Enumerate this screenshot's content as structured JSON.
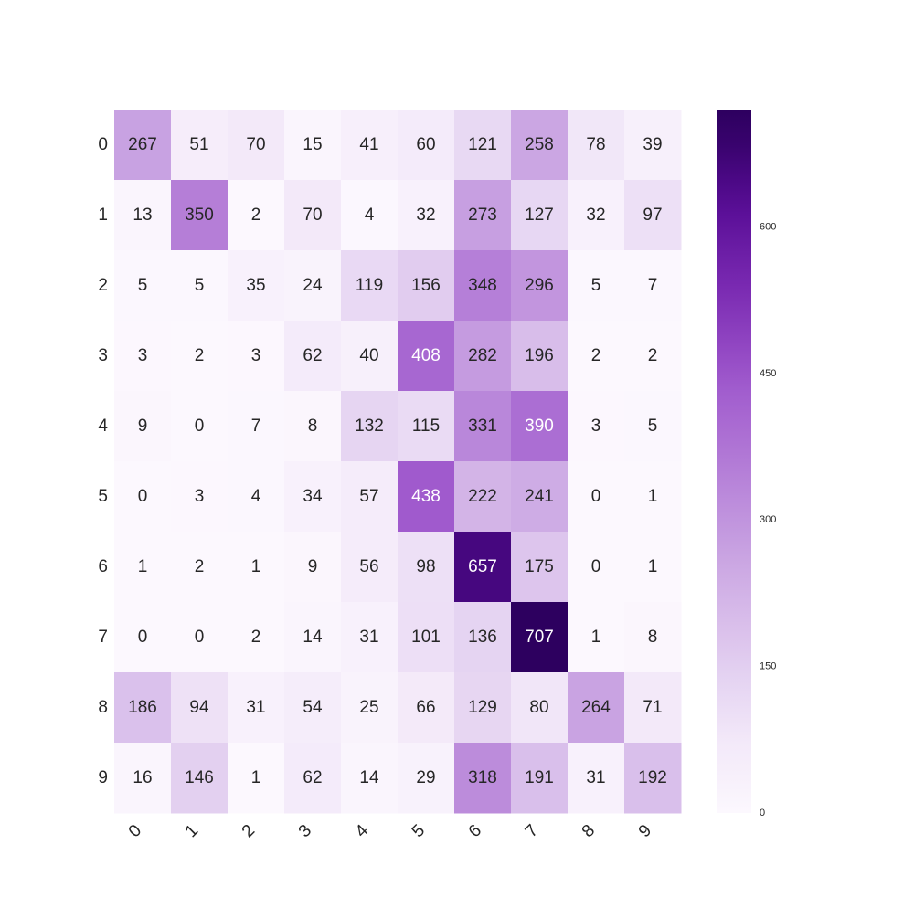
{
  "chart_data": {
    "type": "heatmap",
    "title": "",
    "xlabel": "",
    "ylabel": "",
    "x_categories": [
      "0",
      "1",
      "2",
      "3",
      "4",
      "5",
      "6",
      "7",
      "8",
      "9"
    ],
    "y_categories": [
      "0",
      "1",
      "2",
      "3",
      "4",
      "5",
      "6",
      "7",
      "8",
      "9"
    ],
    "values": [
      [
        267,
        51,
        70,
        15,
        41,
        60,
        121,
        258,
        78,
        39
      ],
      [
        13,
        350,
        2,
        70,
        4,
        32,
        273,
        127,
        32,
        97
      ],
      [
        5,
        5,
        35,
        24,
        119,
        156,
        348,
        296,
        5,
        7
      ],
      [
        3,
        2,
        3,
        62,
        40,
        408,
        282,
        196,
        2,
        2
      ],
      [
        9,
        0,
        7,
        8,
        132,
        115,
        331,
        390,
        3,
        5
      ],
      [
        0,
        3,
        4,
        34,
        57,
        438,
        222,
        241,
        0,
        1
      ],
      [
        1,
        2,
        1,
        9,
        56,
        98,
        657,
        175,
        0,
        1
      ],
      [
        0,
        0,
        2,
        14,
        31,
        101,
        136,
        707,
        1,
        8
      ],
      [
        186,
        94,
        31,
        54,
        25,
        66,
        129,
        80,
        264,
        71
      ],
      [
        16,
        146,
        1,
        62,
        14,
        29,
        318,
        191,
        31,
        192
      ]
    ],
    "colormap": "Purples",
    "colors": {
      "low": "#fcfbfd",
      "high": "#3f007d",
      "annotation_dark": "#262626",
      "annotation_light": "#ffffff"
    },
    "value_range": [
      0,
      707
    ],
    "colorbar": {
      "ticks": [
        0,
        150,
        300,
        450,
        600
      ],
      "tick_labels": [
        "0",
        "150",
        "300",
        "450",
        "600"
      ],
      "placement": "right"
    },
    "grid": false
  }
}
